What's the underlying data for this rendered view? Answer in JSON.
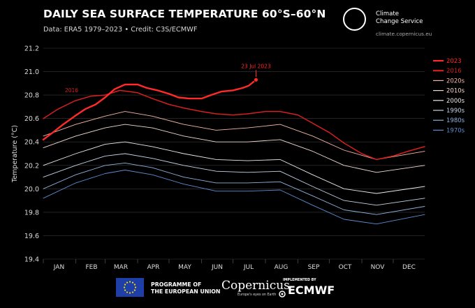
{
  "header": {
    "title": "DAILY SEA SURFACE TEMPERATURE 60°S–60°N",
    "subtitle": "Data: ERA5 1979–2023 • Credit: C3S/ECMWF"
  },
  "branding": {
    "logo_name": "Climate\nChange Service",
    "logo_url": "climate.copernicus.eu"
  },
  "footer": {
    "programme": "PROGRAMME OF\nTHE EUROPEAN UNION",
    "copernicus": "Copernicus",
    "copernicus_tagline": "Europe's eyes on Earth",
    "implemented_by": "IMPLEMENTED BY",
    "ecmwf": "ECMWF"
  },
  "chart_data": {
    "type": "line",
    "title": "DAILY SEA SURFACE TEMPERATURE 60°S–60°N",
    "ylabel": "Temperature (°C)",
    "xlabel": "",
    "ylim": [
      19.4,
      21.2
    ],
    "yticks": [
      "19.4",
      "19.6",
      "19.8",
      "20.0",
      "20.2",
      "20.4",
      "20.6",
      "20.8",
      "21.0",
      "21.2"
    ],
    "x_categories": [
      "JAN",
      "FEB",
      "MAR",
      "APR",
      "MAY",
      "JUN",
      "JUL",
      "AUG",
      "SEP",
      "OCT",
      "NOV",
      "DEC"
    ],
    "grid": true,
    "legend_position": "top-right",
    "legend": [
      {
        "name": "2023",
        "color": "#ff2a2a"
      },
      {
        "name": "2016",
        "color": "#d61f1f"
      },
      {
        "name": "2020s",
        "color": "#f4b6a6"
      },
      {
        "name": "2010s",
        "color": "#f0d9cf"
      },
      {
        "name": "2000s",
        "color": "#eaeaea"
      },
      {
        "name": "1990s",
        "color": "#c4d3e6"
      },
      {
        "name": "1980s",
        "color": "#8fb1dc"
      },
      {
        "name": "1970s",
        "color": "#5d8ed2"
      }
    ],
    "annotations": [
      {
        "text": "23 Jul 2023",
        "x": "2023-07-23",
        "y": 20.93
      },
      {
        "text": "2016",
        "x": "2016-02-01",
        "y": 20.79
      }
    ],
    "series": [
      {
        "name": "2023",
        "color": "#ff2a2a",
        "width": 2.4,
        "points": [
          [
            "Jan 1",
            20.42
          ],
          [
            "Jan 10",
            20.48
          ],
          [
            "Jan 20",
            20.55
          ],
          [
            "Jan 31",
            20.62
          ],
          [
            "Feb 10",
            20.68
          ],
          [
            "Feb 20",
            20.72
          ],
          [
            "Mar 1",
            20.78
          ],
          [
            "Mar 10",
            20.85
          ],
          [
            "Mar 20",
            20.89
          ],
          [
            "Apr 1",
            20.89
          ],
          [
            "Apr 10",
            20.86
          ],
          [
            "Apr 20",
            20.84
          ],
          [
            "May 1",
            20.81
          ],
          [
            "May 10",
            20.78
          ],
          [
            "May 20",
            20.77
          ],
          [
            "Jun 1",
            20.77
          ],
          [
            "Jun 10",
            20.8
          ],
          [
            "Jun 20",
            20.83
          ],
          [
            "Jul 1",
            20.84
          ],
          [
            "Jul 10",
            20.86
          ],
          [
            "Jul 16",
            20.88
          ],
          [
            "Jul 23",
            20.93
          ]
        ]
      },
      {
        "name": "2016",
        "color": "#d61f1f",
        "width": 1.5,
        "points": [
          [
            "Jan 1",
            20.6
          ],
          [
            "Jan 15",
            20.68
          ],
          [
            "Jan 31",
            20.75
          ],
          [
            "Feb 15",
            20.79
          ],
          [
            "Mar 1",
            20.8
          ],
          [
            "Mar 15",
            20.84
          ],
          [
            "Apr 1",
            20.82
          ],
          [
            "Apr 15",
            20.77
          ],
          [
            "May 1",
            20.72
          ],
          [
            "May 15",
            20.69
          ],
          [
            "Jun 1",
            20.66
          ],
          [
            "Jun 15",
            20.64
          ],
          [
            "Jul 1",
            20.63
          ],
          [
            "Jul 15",
            20.64
          ],
          [
            "Aug 1",
            20.66
          ],
          [
            "Aug 15",
            20.66
          ],
          [
            "Sep 1",
            20.63
          ],
          [
            "Sep 15",
            20.56
          ],
          [
            "Oct 1",
            20.48
          ],
          [
            "Oct 15",
            20.39
          ],
          [
            "Nov 1",
            20.3
          ],
          [
            "Nov 15",
            20.25
          ],
          [
            "Dec 1",
            20.28
          ],
          [
            "Dec 15",
            20.32
          ],
          [
            "Dec 31",
            20.36
          ]
        ]
      },
      {
        "name": "2020s",
        "color": "#f4b6a6",
        "width": 0.9,
        "points": [
          [
            "Jan 1",
            20.45
          ],
          [
            "Feb 1",
            20.55
          ],
          [
            "Mar 1",
            20.62
          ],
          [
            "Mar 20",
            20.66
          ],
          [
            "Apr 15",
            20.62
          ],
          [
            "May 15",
            20.55
          ],
          [
            "Jun 15",
            20.5
          ],
          [
            "Jul 15",
            20.52
          ],
          [
            "Aug 15",
            20.55
          ],
          [
            "Sep 15",
            20.45
          ],
          [
            "Oct 15",
            20.33
          ],
          [
            "Nov 15",
            20.25
          ],
          [
            "Dec 31",
            20.32
          ]
        ]
      },
      {
        "name": "2010s",
        "color": "#f0d9cf",
        "width": 0.9,
        "points": [
          [
            "Jan 1",
            20.35
          ],
          [
            "Feb 1",
            20.45
          ],
          [
            "Mar 1",
            20.52
          ],
          [
            "Mar 20",
            20.55
          ],
          [
            "Apr 15",
            20.52
          ],
          [
            "May 15",
            20.45
          ],
          [
            "Jun 15",
            20.4
          ],
          [
            "Jul 15",
            20.4
          ],
          [
            "Aug 15",
            20.42
          ],
          [
            "Sep 15",
            20.32
          ],
          [
            "Oct 15",
            20.2
          ],
          [
            "Nov 15",
            20.14
          ],
          [
            "Dec 31",
            20.2
          ]
        ]
      },
      {
        "name": "2000s",
        "color": "#eaeaea",
        "width": 0.9,
        "points": [
          [
            "Jan 1",
            20.2
          ],
          [
            "Feb 1",
            20.3
          ],
          [
            "Mar 1",
            20.38
          ],
          [
            "Mar 20",
            20.4
          ],
          [
            "Apr 15",
            20.36
          ],
          [
            "May 15",
            20.3
          ],
          [
            "Jun 15",
            20.25
          ],
          [
            "Jul 15",
            20.24
          ],
          [
            "Aug 15",
            20.25
          ],
          [
            "Sep 15",
            20.12
          ],
          [
            "Oct 15",
            20.0
          ],
          [
            "Nov 15",
            19.96
          ],
          [
            "Dec 31",
            20.02
          ]
        ]
      },
      {
        "name": "1990s",
        "color": "#c4d3e6",
        "width": 0.9,
        "points": [
          [
            "Jan 1",
            20.1
          ],
          [
            "Feb 1",
            20.2
          ],
          [
            "Mar 1",
            20.28
          ],
          [
            "Mar 20",
            20.3
          ],
          [
            "Apr 15",
            20.26
          ],
          [
            "May 15",
            20.2
          ],
          [
            "Jun 15",
            20.15
          ],
          [
            "Jul 15",
            20.14
          ],
          [
            "Aug 15",
            20.15
          ],
          [
            "Sep 15",
            20.02
          ],
          [
            "Oct 15",
            19.9
          ],
          [
            "Nov 15",
            19.86
          ],
          [
            "Dec 31",
            19.92
          ]
        ]
      },
      {
        "name": "1980s",
        "color": "#8fb1dc",
        "width": 0.9,
        "points": [
          [
            "Jan 1",
            20.0
          ],
          [
            "Feb 1",
            20.12
          ],
          [
            "Mar 1",
            20.2
          ],
          [
            "Mar 20",
            20.22
          ],
          [
            "Apr 15",
            20.18
          ],
          [
            "May 15",
            20.1
          ],
          [
            "Jun 15",
            20.05
          ],
          [
            "Jul 15",
            20.05
          ],
          [
            "Aug 15",
            20.06
          ],
          [
            "Sep 15",
            19.94
          ],
          [
            "Oct 15",
            19.82
          ],
          [
            "Nov 15",
            19.78
          ],
          [
            "Dec 31",
            19.85
          ]
        ]
      },
      {
        "name": "1970s",
        "color": "#5d8ed2",
        "width": 0.9,
        "points": [
          [
            "Jan 1",
            19.92
          ],
          [
            "Feb 1",
            20.05
          ],
          [
            "Mar 1",
            20.13
          ],
          [
            "Mar 20",
            20.16
          ],
          [
            "Apr 15",
            20.12
          ],
          [
            "May 15",
            20.04
          ],
          [
            "Jun 15",
            19.98
          ],
          [
            "Jul 15",
            19.98
          ],
          [
            "Aug 15",
            19.99
          ],
          [
            "Sep 15",
            19.86
          ],
          [
            "Oct 15",
            19.74
          ],
          [
            "Nov 15",
            19.7
          ],
          [
            "Dec 31",
            19.78
          ]
        ]
      }
    ]
  }
}
